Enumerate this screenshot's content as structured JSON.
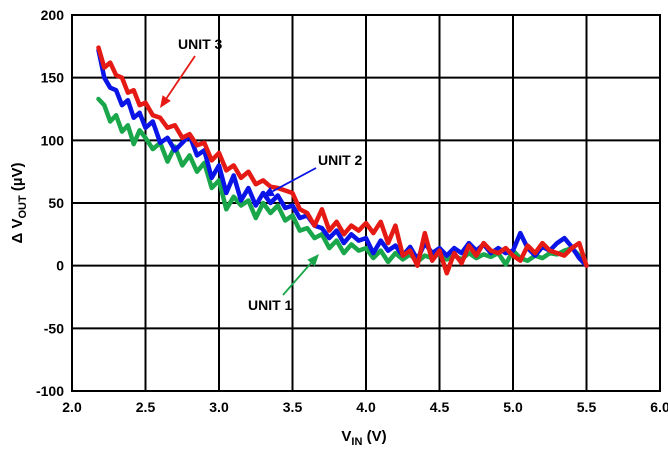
{
  "chart_data": {
    "type": "line",
    "title": "",
    "xlabel": {
      "main": "V",
      "sub": "IN",
      "unit": " (V)"
    },
    "ylabel": {
      "prefix": "Δ V",
      "sub": "OUT",
      "unit": " (µV)"
    },
    "xlim": [
      2.0,
      6.0
    ],
    "ylim": [
      -100,
      200
    ],
    "xticks": [
      2.0,
      2.5,
      3.0,
      3.5,
      4.0,
      4.5,
      5.0,
      5.5,
      6.0
    ],
    "xtick_labels": [
      "2.0",
      "2.5",
      "3.0",
      "3.5",
      "4.0",
      "4.5",
      "5.0",
      "5.5",
      "6.0"
    ],
    "yticks": [
      -100,
      -50,
      0,
      50,
      100,
      150,
      200
    ],
    "ytick_labels": [
      "-100",
      "-50",
      "0",
      "50",
      "100",
      "150",
      "200"
    ],
    "grid": true,
    "legend": "none",
    "series": [
      {
        "name": "UNIT 1",
        "color": "#1aa64a",
        "x": [
          2.18,
          2.22,
          2.26,
          2.3,
          2.34,
          2.38,
          2.42,
          2.46,
          2.5,
          2.55,
          2.6,
          2.65,
          2.7,
          2.75,
          2.8,
          2.85,
          2.9,
          2.95,
          3.0,
          3.05,
          3.1,
          3.15,
          3.2,
          3.25,
          3.3,
          3.35,
          3.4,
          3.45,
          3.5,
          3.55,
          3.6,
          3.65,
          3.7,
          3.75,
          3.8,
          3.85,
          3.9,
          3.95,
          4.0,
          4.05,
          4.1,
          4.15,
          4.2,
          4.25,
          4.3,
          4.35,
          4.4,
          4.45,
          4.5,
          4.55,
          4.6,
          4.65,
          4.7,
          4.75,
          4.8,
          4.85,
          4.9,
          4.95,
          5.0,
          5.05,
          5.1,
          5.15,
          5.2,
          5.25,
          5.3,
          5.35,
          5.4,
          5.45,
          5.5
        ],
        "values": [
          133,
          128,
          115,
          120,
          107,
          112,
          97,
          108,
          102,
          93,
          98,
          83,
          95,
          80,
          88,
          75,
          82,
          62,
          68,
          45,
          55,
          48,
          52,
          38,
          50,
          42,
          48,
          36,
          40,
          28,
          30,
          22,
          25,
          14,
          20,
          10,
          17,
          12,
          14,
          6,
          12,
          3,
          10,
          5,
          9,
          3,
          8,
          6,
          10,
          5,
          8,
          5,
          10,
          6,
          9,
          7,
          10,
          1,
          12,
          6,
          4,
          8,
          6,
          10,
          9,
          12,
          14,
          8,
          0
        ]
      },
      {
        "name": "UNIT 2",
        "color": "#0a14e6",
        "x": [
          2.18,
          2.22,
          2.26,
          2.3,
          2.34,
          2.38,
          2.42,
          2.46,
          2.5,
          2.55,
          2.6,
          2.65,
          2.7,
          2.75,
          2.8,
          2.85,
          2.9,
          2.95,
          3.0,
          3.05,
          3.1,
          3.15,
          3.2,
          3.25,
          3.3,
          3.35,
          3.4,
          3.45,
          3.5,
          3.55,
          3.6,
          3.65,
          3.7,
          3.75,
          3.8,
          3.85,
          3.9,
          3.95,
          4.0,
          4.05,
          4.1,
          4.15,
          4.2,
          4.25,
          4.3,
          4.35,
          4.4,
          4.45,
          4.5,
          4.55,
          4.6,
          4.65,
          4.7,
          4.75,
          4.8,
          4.85,
          4.9,
          4.95,
          5.0,
          5.05,
          5.1,
          5.15,
          5.2,
          5.25,
          5.3,
          5.35,
          5.4,
          5.45,
          5.5
        ],
        "values": [
          172,
          150,
          142,
          140,
          128,
          132,
          118,
          122,
          110,
          115,
          98,
          102,
          92,
          98,
          104,
          88,
          92,
          70,
          80,
          58,
          72,
          52,
          62,
          48,
          58,
          50,
          56,
          46,
          48,
          38,
          40,
          32,
          30,
          22,
          28,
          18,
          25,
          20,
          22,
          10,
          20,
          12,
          16,
          8,
          15,
          5,
          18,
          10,
          14,
          8,
          14,
          10,
          18,
          12,
          17,
          10,
          14,
          10,
          12,
          26,
          14,
          8,
          15,
          12,
          18,
          22,
          15,
          6,
          0
        ]
      },
      {
        "name": "UNIT 3",
        "color": "#e61a14",
        "x": [
          2.18,
          2.22,
          2.26,
          2.3,
          2.34,
          2.38,
          2.42,
          2.46,
          2.5,
          2.55,
          2.6,
          2.65,
          2.7,
          2.75,
          2.8,
          2.85,
          2.9,
          2.95,
          3.0,
          3.05,
          3.1,
          3.15,
          3.2,
          3.25,
          3.3,
          3.35,
          3.4,
          3.45,
          3.5,
          3.55,
          3.6,
          3.65,
          3.7,
          3.75,
          3.8,
          3.85,
          3.9,
          3.95,
          4.0,
          4.05,
          4.1,
          4.15,
          4.2,
          4.25,
          4.3,
          4.35,
          4.4,
          4.45,
          4.5,
          4.55,
          4.6,
          4.65,
          4.7,
          4.75,
          4.8,
          4.85,
          4.9,
          4.95,
          5.0,
          5.05,
          5.1,
          5.15,
          5.2,
          5.25,
          5.3,
          5.35,
          5.4,
          5.45,
          5.5
        ],
        "values": [
          174,
          158,
          162,
          152,
          150,
          138,
          140,
          128,
          130,
          120,
          118,
          110,
          112,
          102,
          105,
          96,
          98,
          84,
          90,
          76,
          80,
          70,
          75,
          65,
          68,
          63,
          62,
          60,
          58,
          45,
          42,
          32,
          45,
          28,
          35,
          25,
          32,
          28,
          34,
          26,
          35,
          18,
          32,
          8,
          12,
          0,
          26,
          4,
          12,
          -6,
          10,
          2,
          16,
          8,
          18,
          12,
          10,
          14,
          8,
          4,
          16,
          10,
          18,
          12,
          10,
          8,
          14,
          18,
          0
        ]
      }
    ],
    "annotations": [
      {
        "text": "UNIT 3",
        "series": "UNIT 3"
      },
      {
        "text": "UNIT 2",
        "series": "UNIT 2"
      },
      {
        "text": "UNIT 1",
        "series": "UNIT 1"
      }
    ]
  }
}
